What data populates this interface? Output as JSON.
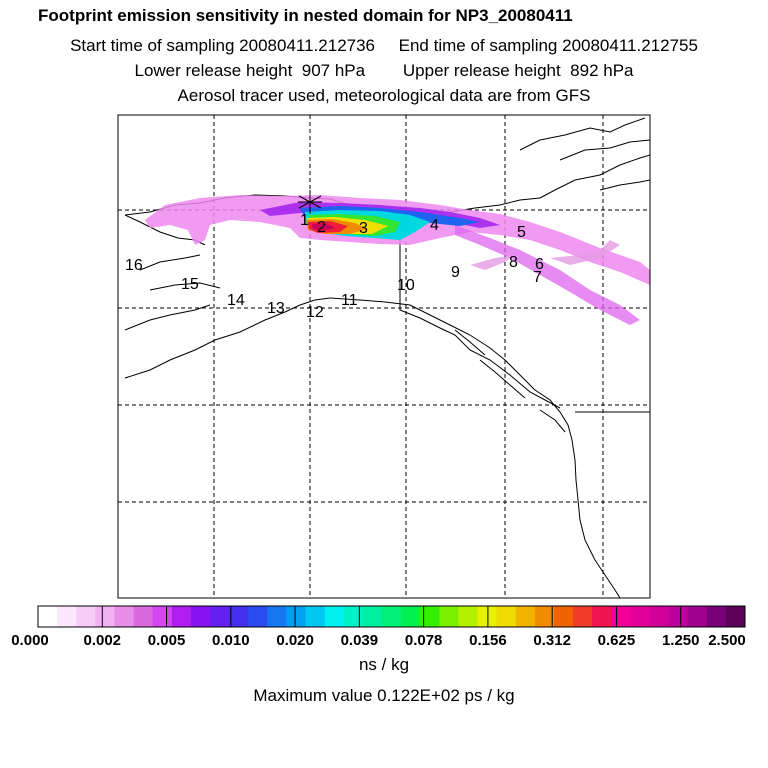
{
  "header": {
    "title": "Footprint emission sensitivity in nested domain for NP3_20080411",
    "start_label": "Start time of sampling 20080411.212736",
    "end_label": "End time of sampling 20080411.212755",
    "lower_label": "Lower release height  907 hPa",
    "upper_label": "Upper release height  892 hPa",
    "tracer_line": "Aerosol tracer used, meteorological data are from GFS"
  },
  "map": {
    "release_marker": "asterisk-icon",
    "labels": [
      {
        "id": "1",
        "text": "1"
      },
      {
        "id": "2",
        "text": "2"
      },
      {
        "id": "3",
        "text": "3"
      },
      {
        "id": "4",
        "text": "4"
      },
      {
        "id": "5",
        "text": "5"
      },
      {
        "id": "6",
        "text": "6"
      },
      {
        "id": "7",
        "text": "7"
      },
      {
        "id": "8",
        "text": "8"
      },
      {
        "id": "9",
        "text": "9"
      },
      {
        "id": "10",
        "text": "10"
      },
      {
        "id": "11",
        "text": "11"
      },
      {
        "id": "12",
        "text": "12"
      },
      {
        "id": "13",
        "text": "13"
      },
      {
        "id": "14",
        "text": "14"
      },
      {
        "id": "15",
        "text": "15"
      },
      {
        "id": "16",
        "text": "16"
      }
    ]
  },
  "colorbar": {
    "colors": [
      "#ffffff",
      "#fce8fc",
      "#f7cdf7",
      "#f2b2f2",
      "#e88ee8",
      "#dd6add",
      "#d246f2",
      "#b01ef0",
      "#8a14f0",
      "#6420f0",
      "#4430f0",
      "#2a4cf0",
      "#1478f0",
      "#00a0f0",
      "#00c8f0",
      "#00f0f0",
      "#00f0c8",
      "#00f0a0",
      "#00f078",
      "#00f050",
      "#32f000",
      "#78f000",
      "#b4f000",
      "#e6f000",
      "#f0dc00",
      "#f0b400",
      "#f08c00",
      "#f06400",
      "#f03c28",
      "#f01450",
      "#f00096",
      "#e6009a",
      "#d2009a",
      "#be009a",
      "#a0008c",
      "#780078",
      "#5a005a"
    ],
    "tick_labels": [
      "0.000",
      "0.002",
      "0.005",
      "0.010",
      "0.020",
      "0.039",
      "0.078",
      "0.156",
      "0.312",
      "0.625",
      "1.250",
      "2.500"
    ],
    "units": "ns / kg",
    "max_value_text": "Maximum value  0.122E+02 ps / kg"
  }
}
